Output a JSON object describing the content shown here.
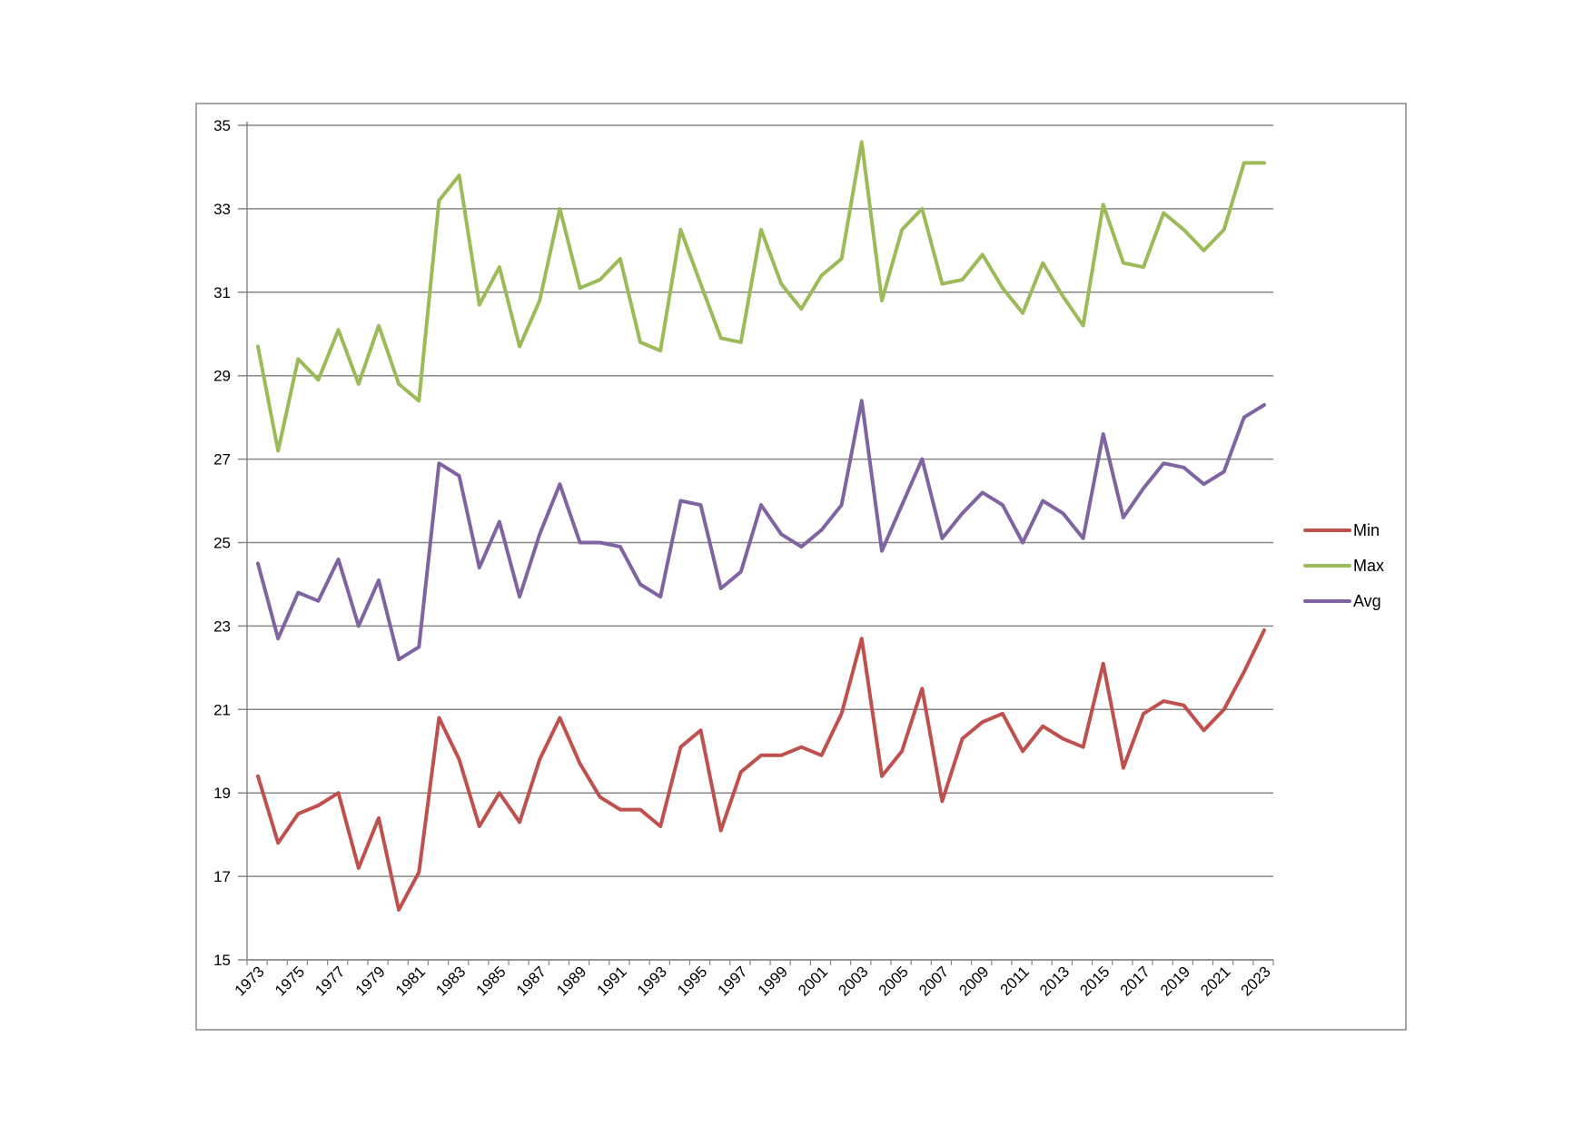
{
  "chart_data": {
    "type": "line",
    "title": "",
    "xlabel": "",
    "ylabel": "",
    "ylim": [
      15,
      35
    ],
    "y_ticks": [
      15,
      17,
      19,
      21,
      23,
      25,
      27,
      29,
      31,
      33,
      35
    ],
    "x": [
      1973,
      1974,
      1975,
      1976,
      1977,
      1978,
      1979,
      1980,
      1981,
      1982,
      1983,
      1984,
      1985,
      1986,
      1987,
      1988,
      1989,
      1990,
      1991,
      1992,
      1993,
      1994,
      1995,
      1996,
      1997,
      1998,
      1999,
      2000,
      2001,
      2002,
      2003,
      2004,
      2005,
      2006,
      2007,
      2008,
      2009,
      2010,
      2011,
      2012,
      2013,
      2014,
      2015,
      2016,
      2017,
      2018,
      2019,
      2020,
      2021,
      2022,
      2023
    ],
    "x_tick_labels": [
      "1973",
      "1975",
      "1977",
      "1979",
      "1981",
      "1983",
      "1985",
      "1987",
      "1989",
      "1991",
      "1993",
      "1995",
      "1997",
      "1999",
      "2001",
      "2003",
      "2005",
      "2007",
      "2009",
      "2011",
      "2013",
      "2015",
      "2017",
      "2019",
      "2021",
      "2023"
    ],
    "grid": "horizontal",
    "legend_position": "right",
    "series": [
      {
        "name": "Min",
        "color": "#c0504d",
        "values": [
          19.4,
          17.8,
          18.5,
          18.7,
          19.0,
          17.2,
          18.4,
          16.2,
          17.1,
          20.8,
          19.8,
          18.2,
          19.0,
          18.3,
          19.8,
          20.8,
          19.7,
          18.9,
          18.6,
          18.6,
          18.2,
          20.1,
          20.5,
          18.1,
          19.5,
          19.9,
          19.9,
          20.1,
          19.9,
          20.9,
          22.7,
          19.4,
          20.0,
          21.5,
          18.8,
          20.3,
          20.7,
          20.9,
          20.0,
          20.6,
          20.3,
          20.1,
          22.1,
          19.6,
          20.9,
          21.2,
          21.1,
          20.5,
          21.0,
          21.9,
          22.9
        ]
      },
      {
        "name": "Max",
        "color": "#9bbb59",
        "values": [
          29.7,
          27.2,
          29.4,
          28.9,
          30.1,
          28.8,
          30.2,
          28.8,
          28.4,
          33.2,
          33.8,
          30.7,
          31.6,
          29.7,
          30.8,
          33.0,
          31.1,
          31.3,
          31.8,
          29.8,
          29.6,
          32.5,
          31.2,
          29.9,
          29.8,
          32.5,
          31.2,
          30.6,
          31.4,
          31.8,
          34.6,
          30.8,
          32.5,
          33.0,
          31.2,
          31.3,
          31.9,
          31.1,
          30.5,
          31.7,
          30.9,
          30.2,
          33.1,
          31.7,
          31.6,
          32.9,
          32.5,
          32.0,
          32.5,
          34.1,
          34.1
        ]
      },
      {
        "name": "Avg",
        "color": "#8064a2",
        "values": [
          24.5,
          22.7,
          23.8,
          23.6,
          24.6,
          23.0,
          24.1,
          22.2,
          22.5,
          26.9,
          26.6,
          24.4,
          25.5,
          23.7,
          25.2,
          26.4,
          25.0,
          25.0,
          24.9,
          24.0,
          23.7,
          26.0,
          25.9,
          23.9,
          24.3,
          25.9,
          25.2,
          24.9,
          25.3,
          25.9,
          28.4,
          24.8,
          25.9,
          27.0,
          25.1,
          25.7,
          26.2,
          25.9,
          25.0,
          26.0,
          25.7,
          25.1,
          27.6,
          25.6,
          26.3,
          26.9,
          26.8,
          26.4,
          26.7,
          28.0,
          28.3
        ]
      }
    ]
  }
}
